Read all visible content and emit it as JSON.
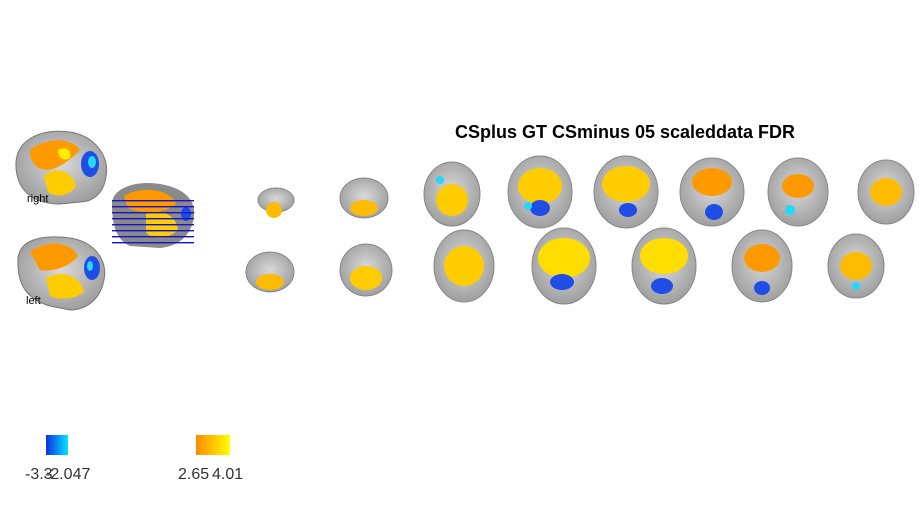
{
  "figure": {
    "title": "CSplus GT CSminus 05 scaleddata FDR",
    "labels": {
      "right": "right",
      "left": "left"
    },
    "colorbars": {
      "negative": {
        "text_a": "-3.3",
        "text_b": "-2.047",
        "colors": [
          "#1030e0",
          "#00e5ff"
        ]
      },
      "positive": {
        "text_a": "2.65",
        "text_b": "4.01",
        "colors": [
          "#ff8c00",
          "#ffff00"
        ]
      }
    },
    "colors": {
      "brain_gray": "#bdbdbd",
      "activation_orange": "#ff9900",
      "activation_yellow": "#ffee00",
      "deactivation_blue": "#1f4de6",
      "deactivation_cyan": "#22d8ff",
      "sagittal_slice_lines": "#1414c8"
    }
  }
}
